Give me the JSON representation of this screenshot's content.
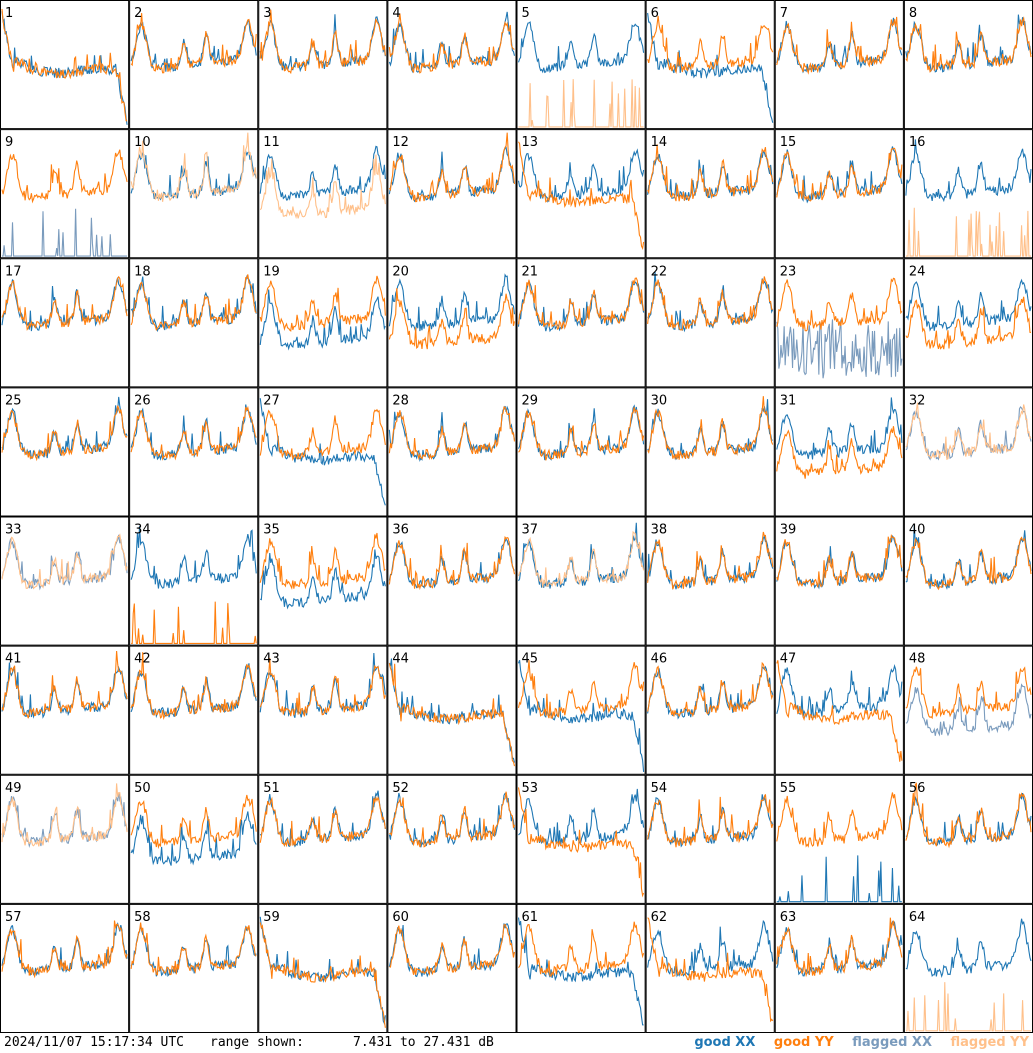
{
  "footer": {
    "timestamp": "2024/11/07 15:17:34 UTC",
    "range_label": "range shown:",
    "range_text": "7.431 to 27.431 dB"
  },
  "legend": [
    {
      "label": "good XX",
      "color": "#1f77b4"
    },
    {
      "label": "good YY",
      "color": "#ff7f0e"
    },
    {
      "label": "flagged XX",
      "color": "#7a9bbd"
    },
    {
      "label": "flagged YY",
      "color": "#ffc08a"
    }
  ],
  "chart_data": {
    "type": "line",
    "layout": "8x8 small multiples",
    "ylim": [
      7.431,
      27.431
    ],
    "units": "dB",
    "series_names": [
      "good XX",
      "good YY",
      "flagged XX",
      "flagged YY"
    ],
    "panels": [
      {
        "label": "1",
        "xx": "good",
        "yy": "good",
        "shape": "bad-plateau"
      },
      {
        "label": "2",
        "xx": "good",
        "yy": "good",
        "shape": "normal"
      },
      {
        "label": "3",
        "xx": "good",
        "yy": "good",
        "shape": "normal"
      },
      {
        "label": "4",
        "xx": "good",
        "yy": "good",
        "shape": "normal"
      },
      {
        "label": "5",
        "xx": "good",
        "yy": "flagged",
        "shape": "xx-only"
      },
      {
        "label": "6",
        "xx": "good",
        "yy": "good",
        "shape": "xx-bad"
      },
      {
        "label": "7",
        "xx": "good",
        "yy": "good",
        "shape": "normal"
      },
      {
        "label": "8",
        "xx": "good",
        "yy": "good",
        "shape": "normal"
      },
      {
        "label": "9",
        "xx": "flagged",
        "yy": "good",
        "shape": "yy-only"
      },
      {
        "label": "10",
        "xx": "good",
        "yy": "flagged",
        "shape": "normal"
      },
      {
        "label": "11",
        "xx": "good",
        "yy": "flagged",
        "shape": "yy-low"
      },
      {
        "label": "12",
        "xx": "good",
        "yy": "good",
        "shape": "normal"
      },
      {
        "label": "13",
        "xx": "good",
        "yy": "good",
        "shape": "yy-bad"
      },
      {
        "label": "14",
        "xx": "good",
        "yy": "good",
        "shape": "normal"
      },
      {
        "label": "15",
        "xx": "good",
        "yy": "good",
        "shape": "normal"
      },
      {
        "label": "16",
        "xx": "good",
        "yy": "flagged",
        "shape": "xx-only"
      },
      {
        "label": "17",
        "xx": "good",
        "yy": "good",
        "shape": "normal"
      },
      {
        "label": "18",
        "xx": "good",
        "yy": "good",
        "shape": "normal"
      },
      {
        "label": "19",
        "xx": "good",
        "yy": "good",
        "shape": "xx-low"
      },
      {
        "label": "20",
        "xx": "good",
        "yy": "good",
        "shape": "yy-low"
      },
      {
        "label": "21",
        "xx": "good",
        "yy": "good",
        "shape": "normal"
      },
      {
        "label": "22",
        "xx": "good",
        "yy": "good",
        "shape": "normal"
      },
      {
        "label": "23",
        "xx": "flagged",
        "yy": "good",
        "shape": "noise"
      },
      {
        "label": "24",
        "xx": "good",
        "yy": "good",
        "shape": "yy-low"
      },
      {
        "label": "25",
        "xx": "good",
        "yy": "good",
        "shape": "normal"
      },
      {
        "label": "26",
        "xx": "good",
        "yy": "good",
        "shape": "normal"
      },
      {
        "label": "27",
        "xx": "good",
        "yy": "good",
        "shape": "xx-bad"
      },
      {
        "label": "28",
        "xx": "good",
        "yy": "good",
        "shape": "normal"
      },
      {
        "label": "29",
        "xx": "good",
        "yy": "good",
        "shape": "normal"
      },
      {
        "label": "30",
        "xx": "good",
        "yy": "good",
        "shape": "normal"
      },
      {
        "label": "31",
        "xx": "good",
        "yy": "good",
        "shape": "yy-low"
      },
      {
        "label": "32",
        "xx": "flagged",
        "yy": "flagged",
        "shape": "normal"
      },
      {
        "label": "33",
        "xx": "flagged",
        "yy": "flagged",
        "shape": "normal"
      },
      {
        "label": "34",
        "xx": "good",
        "yy": "good",
        "shape": "xx-only"
      },
      {
        "label": "35",
        "xx": "good",
        "yy": "good",
        "shape": "xx-low"
      },
      {
        "label": "36",
        "xx": "good",
        "yy": "good",
        "shape": "normal"
      },
      {
        "label": "37",
        "xx": "good",
        "yy": "flagged",
        "shape": "normal"
      },
      {
        "label": "38",
        "xx": "good",
        "yy": "good",
        "shape": "normal"
      },
      {
        "label": "39",
        "xx": "good",
        "yy": "good",
        "shape": "normal"
      },
      {
        "label": "40",
        "xx": "good",
        "yy": "good",
        "shape": "normal"
      },
      {
        "label": "41",
        "xx": "good",
        "yy": "good",
        "shape": "normal"
      },
      {
        "label": "42",
        "xx": "good",
        "yy": "good",
        "shape": "normal"
      },
      {
        "label": "43",
        "xx": "good",
        "yy": "good",
        "shape": "normal"
      },
      {
        "label": "44",
        "xx": "good",
        "yy": "good",
        "shape": "bad-plateau"
      },
      {
        "label": "45",
        "xx": "good",
        "yy": "good",
        "shape": "xx-bad"
      },
      {
        "label": "46",
        "xx": "good",
        "yy": "good",
        "shape": "normal"
      },
      {
        "label": "47",
        "xx": "good",
        "yy": "good",
        "shape": "yy-bad"
      },
      {
        "label": "48",
        "xx": "flagged",
        "yy": "good",
        "shape": "xx-low"
      },
      {
        "label": "49",
        "xx": "flagged",
        "yy": "flagged",
        "shape": "normal"
      },
      {
        "label": "50",
        "xx": "good",
        "yy": "good",
        "shape": "xx-low"
      },
      {
        "label": "51",
        "xx": "good",
        "yy": "good",
        "shape": "normal"
      },
      {
        "label": "52",
        "xx": "good",
        "yy": "good",
        "shape": "normal"
      },
      {
        "label": "53",
        "xx": "good",
        "yy": "good",
        "shape": "yy-bad"
      },
      {
        "label": "54",
        "xx": "good",
        "yy": "good",
        "shape": "normal"
      },
      {
        "label": "55",
        "xx": "good",
        "yy": "good",
        "shape": "yy-only"
      },
      {
        "label": "56",
        "xx": "good",
        "yy": "good",
        "shape": "normal"
      },
      {
        "label": "57",
        "xx": "good",
        "yy": "good",
        "shape": "normal"
      },
      {
        "label": "58",
        "xx": "good",
        "yy": "good",
        "shape": "normal"
      },
      {
        "label": "59",
        "xx": "good",
        "yy": "good",
        "shape": "bad-plateau"
      },
      {
        "label": "60",
        "xx": "good",
        "yy": "good",
        "shape": "normal"
      },
      {
        "label": "61",
        "xx": "good",
        "yy": "good",
        "shape": "xx-bad"
      },
      {
        "label": "62",
        "xx": "good",
        "yy": "good",
        "shape": "yy-bad"
      },
      {
        "label": "63",
        "xx": "good",
        "yy": "good",
        "shape": "normal"
      },
      {
        "label": "64",
        "xx": "good",
        "yy": "flagged",
        "shape": "xx-only"
      }
    ]
  }
}
